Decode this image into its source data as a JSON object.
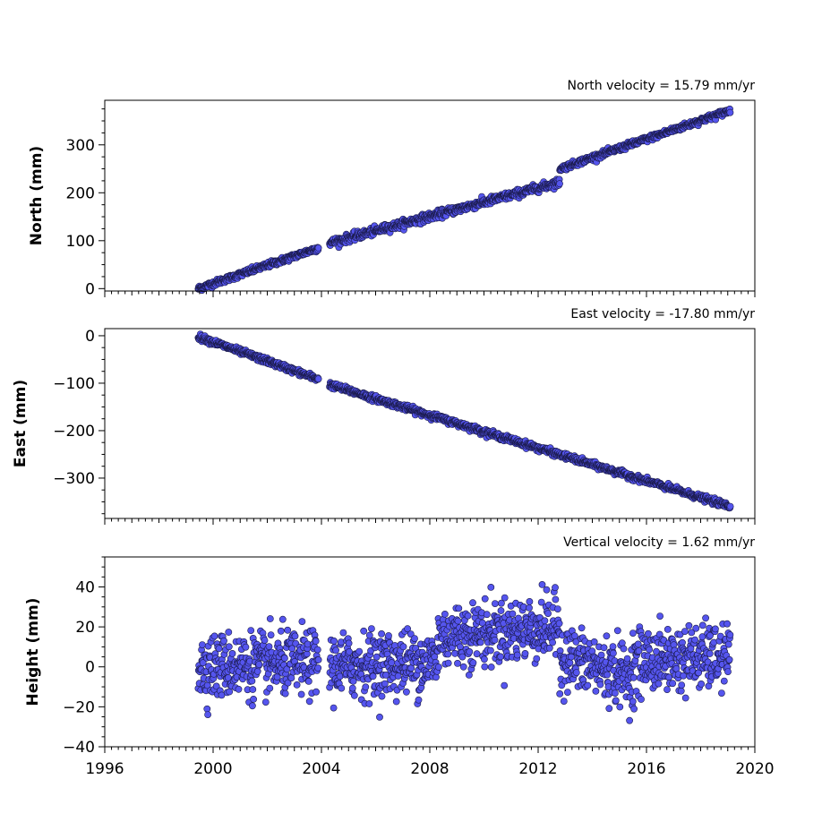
{
  "chart_data": [
    {
      "type": "scatter",
      "title": "North velocity = 15.79 mm/yr",
      "ylabel": "North (mm)",
      "xlim": [
        1996,
        2020
      ],
      "ylim": [
        -5,
        393
      ],
      "yticks": [
        0,
        100,
        200,
        300
      ],
      "yticklabels": [
        "0",
        "100",
        "200",
        "300"
      ],
      "series": [
        {
          "segments": [
            {
              "x": [
                1999.45,
                2003.9
              ],
              "y": [
                0,
                85
              ],
              "noise": 3
            },
            {
              "x": [
                2004.3,
                2012.8
              ],
              "y": [
                95,
                222
              ],
              "noise": 4
            },
            {
              "x": [
                2012.8,
                2019.1
              ],
              "y": [
                250,
                372
              ],
              "noise": 3
            }
          ]
        }
      ]
    },
    {
      "type": "scatter",
      "title": "East velocity = -17.80 mm/yr",
      "ylabel": "East (mm)",
      "xlim": [
        1996,
        2020
      ],
      "ylim": [
        -385,
        15
      ],
      "yticks": [
        0,
        -100,
        -200,
        -300
      ],
      "yticklabels": [
        "0",
        "−100",
        "−200",
        "−300"
      ],
      "series": [
        {
          "segments": [
            {
              "x": [
                1999.45,
                2003.9
              ],
              "y": [
                -2,
                -92
              ],
              "noise": 3
            },
            {
              "x": [
                2004.3,
                2019.1
              ],
              "y": [
                -103,
                -360
              ],
              "noise": 3
            }
          ]
        }
      ]
    },
    {
      "type": "scatter",
      "title": "Vertical velocity = 1.62 mm/yr",
      "ylabel": "Height (mm)",
      "xlim": [
        1996,
        2020
      ],
      "ylim": [
        -40,
        55
      ],
      "yticks": [
        -40,
        -20,
        0,
        20,
        40
      ],
      "yticklabels": [
        "−40",
        "−20",
        "0",
        "20",
        "40"
      ],
      "xticks": [
        1996,
        2000,
        2004,
        2008,
        2012,
        2016,
        2020
      ],
      "xticklabels": [
        "1996",
        "2000",
        "2004",
        "2008",
        "2012",
        "2016",
        "2020"
      ],
      "series": [
        {
          "segments": [
            {
              "x": [
                1999.45,
                2003.9
              ],
              "y": [
                0,
                2
              ],
              "noise": 8
            },
            {
              "x": [
                2004.3,
                2008.3
              ],
              "y": [
                0,
                3
              ],
              "noise": 8
            },
            {
              "x": [
                2008.3,
                2012.8
              ],
              "y": [
                15,
                20
              ],
              "noise": 8
            },
            {
              "x": [
                2012.8,
                2015.5
              ],
              "y": [
                5,
                -5
              ],
              "noise": 8
            },
            {
              "x": [
                2015.5,
                2019.1
              ],
              "y": [
                3,
                5
              ],
              "noise": 8
            }
          ]
        }
      ]
    }
  ],
  "style": {
    "marker_fill": "#5555ee",
    "marker_edge": "#1a1a4a"
  }
}
